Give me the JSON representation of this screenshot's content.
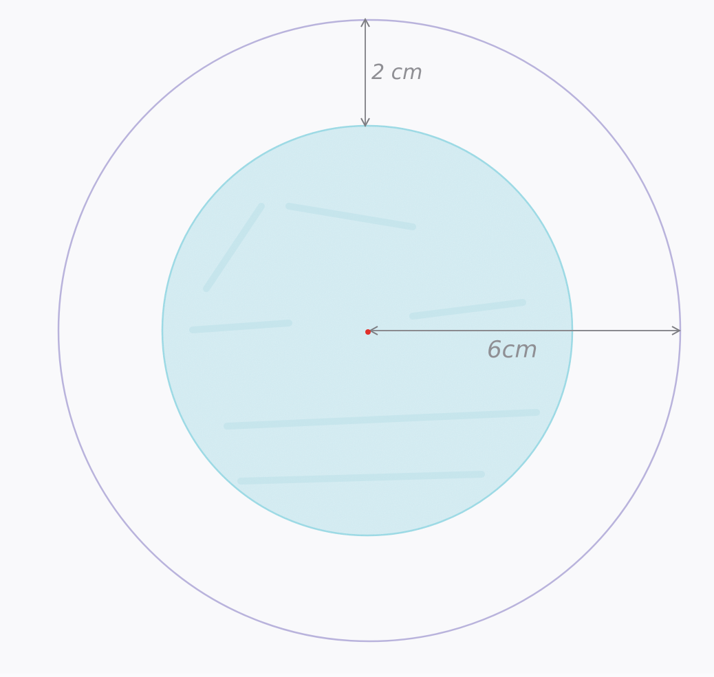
{
  "diagram": {
    "outer_circle_color": "#b9b3dc",
    "inner_circle_fill": "#cfe9f0",
    "inner_circle_stroke": "#8fd6e2",
    "center_dot_color": "#e0302a",
    "arrow_color": "#8a8a8f",
    "labels": {
      "gap": "2 cm",
      "radius": "6cm"
    }
  }
}
